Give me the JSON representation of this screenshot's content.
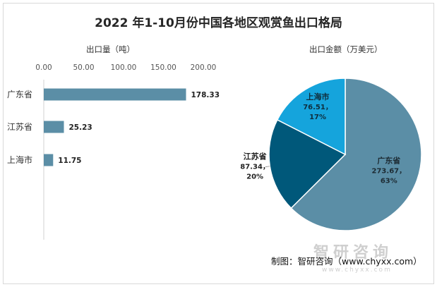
{
  "title": "2022 年1-10月份中国各地区观赏鱼出口格局",
  "watermark": "智研咨询",
  "watermark_url": "www.chyxx.com",
  "credit": "制图：智研咨询（www.chyxx.com）",
  "colors": {
    "bar": "#5b8ea6",
    "pie": [
      "#5b8ea6",
      "#00587a",
      "#15a4dc"
    ]
  },
  "chart_data": [
    {
      "type": "bar",
      "orientation": "horizontal",
      "title": "出口量（吨）",
      "categories": [
        "广东省",
        "江苏省",
        "上海市"
      ],
      "values": [
        178.33,
        25.23,
        11.75
      ],
      "value_labels": [
        "178.33",
        "25.23",
        "11.75"
      ],
      "xlim": [
        0,
        200
      ],
      "xticks": [
        "0.00",
        "50.00",
        "100.00",
        "150.00",
        "200.00"
      ],
      "tick_values": [
        0,
        50,
        100,
        150,
        200
      ]
    },
    {
      "type": "pie",
      "title": "出口金额（万美元）",
      "slices": [
        {
          "label": "广东省",
          "value": 273.67,
          "value_text": "273.67，",
          "percent": "63%"
        },
        {
          "label": "江苏省",
          "value": 87.34,
          "value_text": "87.34，",
          "percent": "20%"
        },
        {
          "label": "上海市",
          "value": 76.51,
          "value_text": "76.51，",
          "percent": "17%"
        }
      ]
    }
  ]
}
